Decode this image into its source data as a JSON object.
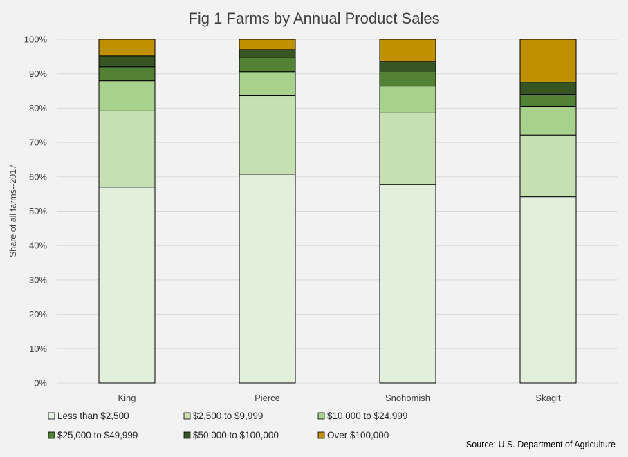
{
  "chart_data": {
    "type": "bar",
    "stacked": true,
    "percent": true,
    "title": "Fig 1 Farms by Annual Product Sales",
    "xlabel": "",
    "ylabel": "Share of all farms--2017",
    "ylim": [
      0,
      100
    ],
    "yticks": [
      "0%",
      "10%",
      "20%",
      "30%",
      "40%",
      "50%",
      "60%",
      "70%",
      "80%",
      "90%",
      "100%"
    ],
    "grid": true,
    "legend_position": "bottom",
    "categories": [
      "King",
      "Pierce",
      "Snohomish",
      "Skagit"
    ],
    "series": [
      {
        "name": "Less than $2,500",
        "color": "#e2efda",
        "values": [
          57.0,
          60.8,
          57.8,
          54.2
        ]
      },
      {
        "name": "$2,500 to $9,999",
        "color": "#c6e0b4",
        "values": [
          22.2,
          22.8,
          20.8,
          18.0
        ]
      },
      {
        "name": "$10,000 to $24,999",
        "color": "#a9d18e",
        "values": [
          8.8,
          7.0,
          7.8,
          8.2
        ]
      },
      {
        "name": "$25,000 to $49,999",
        "color": "#548235",
        "values": [
          4.0,
          4.2,
          4.4,
          3.6
        ]
      },
      {
        "name": "$50,000 to $100,000",
        "color": "#375623",
        "values": [
          3.2,
          2.2,
          2.8,
          3.6
        ]
      },
      {
        "name": "Over $100,000",
        "color": "#bf9000",
        "values": [
          4.8,
          3.0,
          6.4,
          12.4
        ]
      }
    ]
  },
  "source_note": "Source: U.S. Department of Agriculture"
}
